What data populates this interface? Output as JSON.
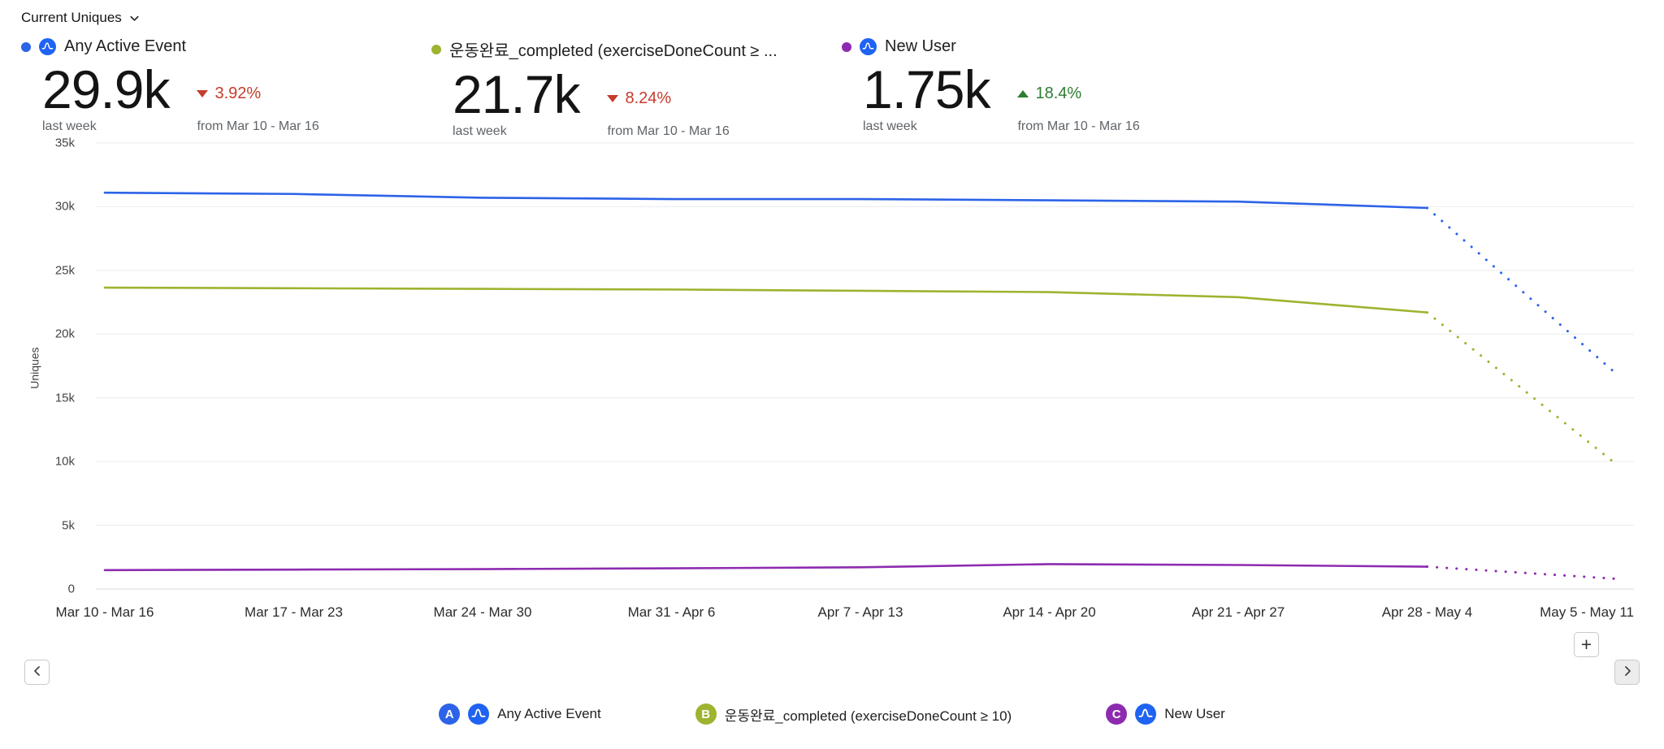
{
  "header": {
    "title": "Current Uniques"
  },
  "icons": {
    "dropdown": "chevron-down",
    "prev": "chevron-left",
    "next": "chevron-right",
    "add_label": "+"
  },
  "summary": {
    "cards": [
      {
        "label": "Any Active Event",
        "value": "29.9k",
        "period": "last week",
        "change": "3.92%",
        "direction": "down",
        "change_color": "#c43c2d",
        "compare": "from Mar 10 - Mar 16",
        "dot_color": "#2c63e8",
        "amp_icon": true
      },
      {
        "label": "운동완료_completed (exerciseDoneCount ≥ ...",
        "value": "21.7k",
        "period": "last week",
        "change": "8.24%",
        "direction": "down",
        "change_color": "#c43c2d",
        "compare": "from Mar 10 - Mar 16",
        "dot_color": "#9eb32f",
        "amp_icon": false
      },
      {
        "label": "New User",
        "value": "1.75k",
        "period": "last week",
        "change": "18.4%",
        "direction": "up",
        "change_color": "#2e7d32",
        "compare": "from Mar 10 - Mar 16",
        "dot_color": "#8d2bb0",
        "amp_icon": true
      }
    ]
  },
  "chart_data": {
    "type": "line",
    "title": "Current Uniques",
    "xlabel": "",
    "ylabel": "Uniques",
    "ylim": [
      0,
      35000
    ],
    "grid": true,
    "legend_position": "bottom",
    "yticks": [
      {
        "value": 0,
        "label": "0"
      },
      {
        "value": 5000,
        "label": "5k"
      },
      {
        "value": 10000,
        "label": "10k"
      },
      {
        "value": 15000,
        "label": "15k"
      },
      {
        "value": 20000,
        "label": "20k"
      },
      {
        "value": 25000,
        "label": "25k"
      },
      {
        "value": 30000,
        "label": "30k"
      },
      {
        "value": 35000,
        "label": "35k"
      }
    ],
    "categories": [
      "Mar 10 - Mar 16",
      "Mar 17 - Mar 23",
      "Mar 24 - Mar 30",
      "Mar 31 - Apr 6",
      "Apr 7 - Apr 13",
      "Apr 14 - Apr 20",
      "Apr 21 - Apr 27",
      "Apr 28 - May 4",
      "May 5 - May 11"
    ],
    "series": [
      {
        "name": "Any Active Event",
        "color": "#2c63e8",
        "dotted_from_index": 7,
        "values": [
          31100,
          31000,
          30700,
          30600,
          30600,
          30500,
          30400,
          29900,
          16900
        ]
      },
      {
        "name": "운동완료_completed (exerciseDoneCount ≥ 10)",
        "color": "#9eb32f",
        "dotted_from_index": 7,
        "values": [
          23650,
          23600,
          23550,
          23500,
          23400,
          23300,
          22900,
          21700,
          9800
        ]
      },
      {
        "name": "New User",
        "color": "#8d2bb0",
        "dotted_from_index": 7,
        "values": [
          1480,
          1520,
          1560,
          1620,
          1700,
          1950,
          1880,
          1750,
          800
        ]
      }
    ]
  },
  "legend": {
    "items": [
      {
        "letter": "A",
        "color": "#2c63e8",
        "amp_icon": true,
        "label": "Any Active Event"
      },
      {
        "letter": "B",
        "color": "#9eb32f",
        "amp_icon": false,
        "label": "운동완료_completed (exerciseDoneCount ≥ 10)"
      },
      {
        "letter": "C",
        "color": "#8d2bb0",
        "amp_icon": true,
        "label": "New User"
      }
    ]
  },
  "controls": {
    "add_label": "+"
  }
}
